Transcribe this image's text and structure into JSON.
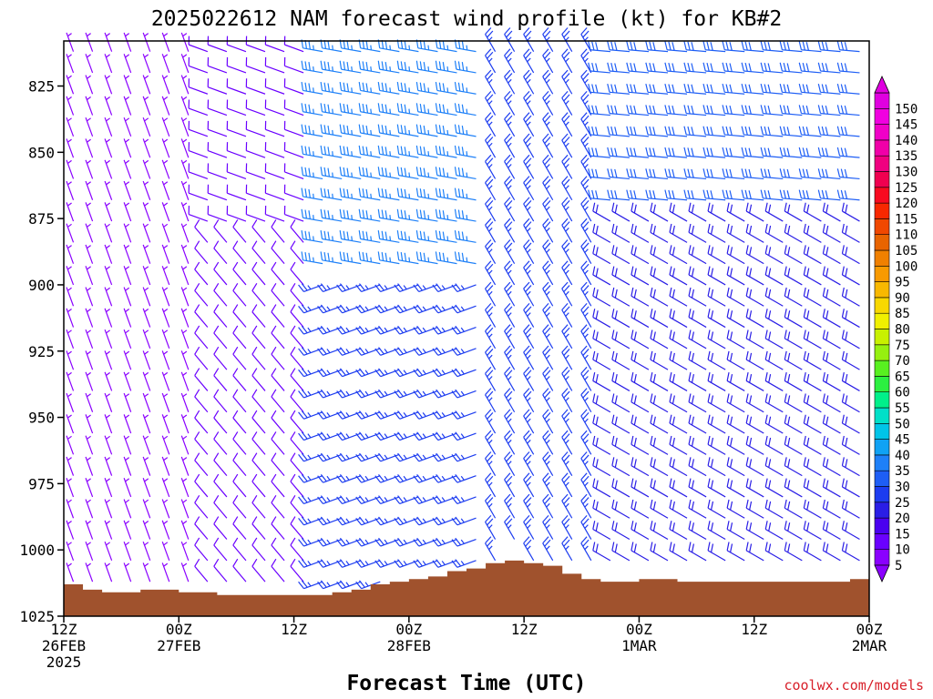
{
  "chart_data": {
    "type": "wind_barb_profile",
    "title": "2025022612 NAM forecast wind profile (kt) for KB#2",
    "xlabel": "Forecast Time (UTC)",
    "credit": "coolwx.com/models",
    "y_axis": {
      "label": "",
      "unit": "hPa",
      "range": [
        808,
        1025
      ],
      "ticks": [
        825,
        850,
        875,
        900,
        925,
        950,
        975,
        1000,
        1025
      ],
      "inverted": true
    },
    "x_axis": {
      "ticks": [
        {
          "hour": 0,
          "line1": "12Z",
          "line2": "26FEB",
          "line3": "2025"
        },
        {
          "hour": 12,
          "line1": "00Z",
          "line2": "27FEB",
          "line3": ""
        },
        {
          "hour": 24,
          "line1": "12Z",
          "line2": "",
          "line3": ""
        },
        {
          "hour": 36,
          "line1": "00Z",
          "line2": "28FEB",
          "line3": ""
        },
        {
          "hour": 48,
          "line1": "12Z",
          "line2": "",
          "line3": ""
        },
        {
          "hour": 60,
          "line1": "00Z",
          "line2": "1MAR",
          "line3": ""
        },
        {
          "hour": 72,
          "line1": "12Z",
          "line2": "",
          "line3": ""
        },
        {
          "hour": 84,
          "line1": "00Z",
          "line2": "2MAR",
          "line3": ""
        }
      ],
      "range": [
        0,
        84
      ]
    },
    "colorbar": {
      "labels": [
        "5",
        "10",
        "15",
        "20",
        "25",
        "30",
        "35",
        "40",
        "45",
        "50",
        "55",
        "60",
        "65",
        "70",
        "75",
        "80",
        "85",
        "90",
        "95",
        "100",
        "105",
        "110",
        "115",
        "120",
        "125",
        "130",
        "135",
        "140",
        "145",
        "150"
      ],
      "colors": [
        "#8a00ff",
        "#6a00ff",
        "#4a00f0",
        "#2a1ee6",
        "#1c3cf0",
        "#1e5ef5",
        "#1e80f8",
        "#10a2f4",
        "#00c4e8",
        "#00e0c8",
        "#00f08a",
        "#2cf040",
        "#58f020",
        "#96f010",
        "#c8f000",
        "#f0f000",
        "#f8d800",
        "#f8b800",
        "#f89a00",
        "#f08000",
        "#e86400",
        "#f04800",
        "#f82800",
        "#f80a20",
        "#f00050",
        "#f00080",
        "#f000a8",
        "#f000c8",
        "#f000e0",
        "#e000e0"
      ]
    },
    "surface_pressure": {
      "unit": "hPa",
      "x": [
        0,
        2,
        4,
        6,
        8,
        10,
        12,
        14,
        16,
        18,
        20,
        22,
        24,
        26,
        28,
        30,
        32,
        34,
        36,
        38,
        40,
        42,
        44,
        46,
        48,
        50,
        52,
        54,
        56,
        58,
        60,
        62,
        64,
        66,
        68,
        70,
        72,
        74,
        76,
        78,
        80,
        82,
        84
      ],
      "values": [
        1013,
        1015,
        1016,
        1016,
        1015,
        1015,
        1016,
        1016,
        1017,
        1017,
        1017,
        1017,
        1017,
        1017,
        1016,
        1015,
        1013,
        1012,
        1011,
        1010,
        1008,
        1007,
        1005,
        1004,
        1005,
        1006,
        1009,
        1011,
        1012,
        1012,
        1011,
        1011,
        1012,
        1012,
        1012,
        1012,
        1012,
        1012,
        1012,
        1012,
        1012,
        1011,
        1009
      ]
    },
    "wind_regions": [
      {
        "t": [
          0,
          15
        ],
        "p": [
          808,
          1025
        ],
        "direction_deg": 340,
        "speed_kt": 8
      },
      {
        "t": [
          15,
          27
        ],
        "p": [
          808,
          880
        ],
        "direction_deg": 290,
        "speed_kt": 14
      },
      {
        "t": [
          15,
          27
        ],
        "p": [
          880,
          1025
        ],
        "direction_deg": 320,
        "speed_kt": 12
      },
      {
        "t": [
          27,
          45
        ],
        "p": [
          808,
          900
        ],
        "direction_deg": 280,
        "speed_kt": 38
      },
      {
        "t": [
          27,
          45
        ],
        "p": [
          900,
          1025
        ],
        "direction_deg": 250,
        "speed_kt": 28
      },
      {
        "t": [
          45,
          57
        ],
        "p": [
          808,
          1025
        ],
        "direction_deg": 330,
        "speed_kt": 25
      },
      {
        "t": [
          57,
          84
        ],
        "p": [
          808,
          870
        ],
        "direction_deg": 275,
        "speed_kt": 30
      },
      {
        "t": [
          57,
          84
        ],
        "p": [
          870,
          1025
        ],
        "direction_deg": 300,
        "speed_kt": 22
      }
    ],
    "grid": false,
    "legend": "colorbar-right"
  }
}
